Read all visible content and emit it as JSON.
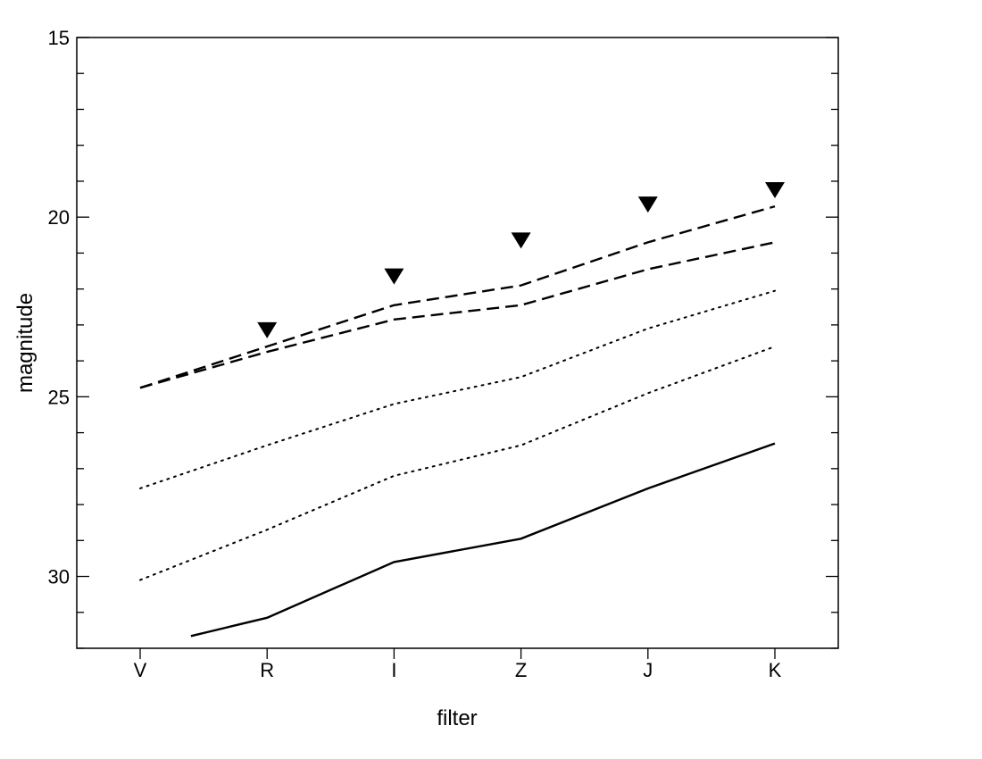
{
  "chart_data": {
    "type": "line",
    "title": "",
    "xlabel": "filter",
    "ylabel": "magnitude",
    "categories": [
      "V",
      "R",
      "I",
      "Z",
      "J",
      "K"
    ],
    "y_inverted": true,
    "ylim": [
      32,
      15
    ],
    "y_ticks": [
      15,
      20,
      25,
      30
    ],
    "y_minor_step": 1,
    "grid": false,
    "legend": "none",
    "series": [
      {
        "style": "dashed",
        "values": [
          24.75,
          23.6,
          22.45,
          21.9,
          20.7,
          19.7
        ]
      },
      {
        "style": "dashed",
        "values": [
          24.75,
          23.75,
          22.85,
          22.45,
          21.45,
          20.7
        ]
      },
      {
        "style": "dotted",
        "values": [
          27.55,
          26.35,
          25.2,
          24.45,
          23.1,
          22.05
        ]
      },
      {
        "style": "dotted",
        "values": [
          30.1,
          28.7,
          27.2,
          26.35,
          24.9,
          23.6
        ]
      },
      {
        "style": "solid",
        "x_start": 0.4,
        "values": [
          32.0,
          31.15,
          29.6,
          28.95,
          27.55,
          26.3
        ]
      }
    ],
    "upper_limits": {
      "marker": "triangle-down",
      "categories": [
        "R",
        "I",
        "Z",
        "J",
        "K"
      ],
      "values": [
        23.15,
        21.65,
        20.65,
        19.65,
        19.25
      ]
    },
    "colors": {
      "line": "#000000",
      "marker": "#000000",
      "background": "#ffffff"
    }
  }
}
